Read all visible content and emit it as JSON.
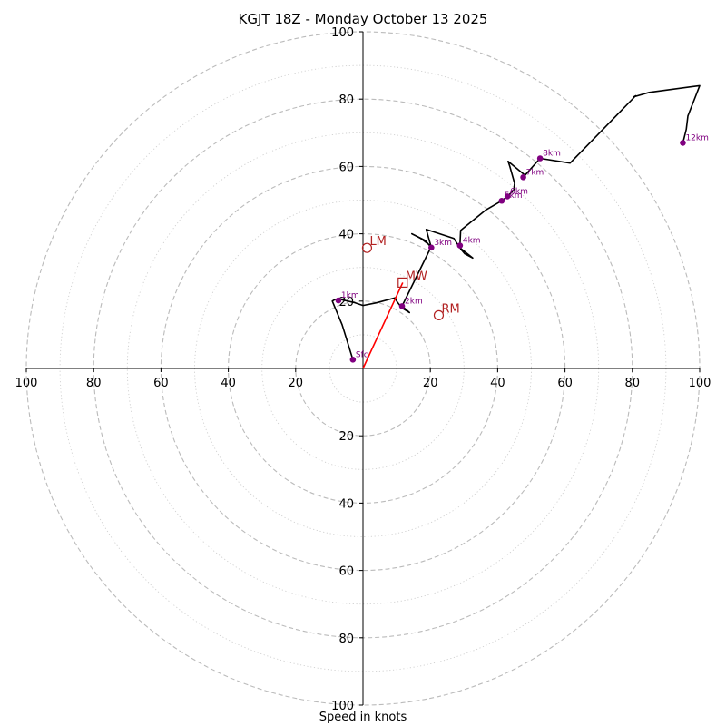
{
  "chart_data": {
    "type": "hodograph",
    "title": "KGJT 18Z - Monday October 13 2025",
    "xlabel": "Speed in knots",
    "range": [
      -100,
      100
    ],
    "ring_major": [
      20,
      40,
      60,
      80,
      100
    ],
    "ring_minor": [
      10,
      30,
      50,
      70,
      90
    ],
    "ticks": [
      {
        "v": -100,
        "label": "100"
      },
      {
        "v": -80,
        "label": "80"
      },
      {
        "v": -60,
        "label": "60"
      },
      {
        "v": -40,
        "label": "40"
      },
      {
        "v": -20,
        "label": "20"
      },
      {
        "v": 20,
        "label": "20"
      },
      {
        "v": 40,
        "label": "40"
      },
      {
        "v": 60,
        "label": "60"
      },
      {
        "v": 80,
        "label": "80"
      },
      {
        "v": 100,
        "label": "100"
      }
    ],
    "series": [
      {
        "name": "hodograph",
        "color": "#000000",
        "points": [
          [
            -3.0,
            2.6
          ],
          [
            -6.2,
            13.0
          ],
          [
            -9.1,
            20.0
          ],
          [
            -8.3,
            20.5
          ],
          [
            -6.8,
            20.5
          ],
          [
            -5.0,
            20.1
          ],
          [
            -2.7,
            19.6
          ],
          [
            0.0,
            18.7
          ],
          [
            4.0,
            19.5
          ],
          [
            9.6,
            21.0
          ],
          [
            10.0,
            20.0
          ],
          [
            11.5,
            18.0
          ],
          [
            13.8,
            16.6
          ],
          [
            12.2,
            18.0
          ],
          [
            11.6,
            18.5
          ],
          [
            20.2,
            36.0
          ],
          [
            18.5,
            38.0
          ],
          [
            14.5,
            40.0
          ],
          [
            17.0,
            38.7
          ],
          [
            20.0,
            36.5
          ],
          [
            20.3,
            35.9
          ],
          [
            18.8,
            41.3
          ],
          [
            27.0,
            38.6
          ],
          [
            28.7,
            35.9
          ],
          [
            32.6,
            32.8
          ],
          [
            30.2,
            34.1
          ],
          [
            29.0,
            35.5
          ],
          [
            29.2,
            36.8
          ],
          [
            28.8,
            36.5
          ],
          [
            29.0,
            41.0
          ],
          [
            36.4,
            47.0
          ],
          [
            41.2,
            49.8
          ],
          [
            42.9,
            51.1
          ],
          [
            44.8,
            53.0
          ],
          [
            45.0,
            55.0
          ],
          [
            43.6,
            60.0
          ],
          [
            43.1,
            61.5
          ],
          [
            48.0,
            57.5
          ],
          [
            47.6,
            56.8
          ],
          [
            52.6,
            62.4
          ],
          [
            61.5,
            61.0
          ],
          [
            81.0,
            81.0
          ],
          [
            80.5,
            80.7
          ],
          [
            85.0,
            82.0
          ],
          [
            100.0,
            84.0
          ],
          [
            96.5,
            75.0
          ],
          [
            96.0,
            71.0
          ],
          [
            95.0,
            67.0
          ]
        ]
      },
      {
        "name": "storm-motion",
        "color": "#ff0000",
        "points": [
          [
            0.0,
            0.0
          ],
          [
            11.8,
            25.5
          ]
        ]
      }
    ],
    "height_markers": [
      {
        "label": "Sfc",
        "u": -3.0,
        "v": 2.6
      },
      {
        "label": "1km",
        "u": -7.3,
        "v": 20.2
      },
      {
        "label": "2km",
        "u": 11.6,
        "v": 18.5
      },
      {
        "label": "3km",
        "u": 20.3,
        "v": 35.9
      },
      {
        "label": "4km",
        "u": 28.8,
        "v": 36.5
      },
      {
        "label": "5km",
        "u": 41.2,
        "v": 49.8
      },
      {
        "label": "6km",
        "u": 42.9,
        "v": 51.1
      },
      {
        "label": "7km",
        "u": 47.6,
        "v": 56.8
      },
      {
        "label": "8km",
        "u": 52.6,
        "v": 62.4
      },
      {
        "label": "12km",
        "u": 95.0,
        "v": 67.0
      }
    ],
    "storm_markers": [
      {
        "label": "LM",
        "shape": "circle",
        "u": 1.2,
        "v": 35.8
      },
      {
        "label": "MW",
        "shape": "square",
        "u": 11.8,
        "v": 25.5
      },
      {
        "label": "RM",
        "shape": "circle",
        "u": 22.5,
        "v": 15.8
      }
    ],
    "colors": {
      "ring": "#bbbbbb",
      "minor_ring": "#cfcfcf",
      "marker": "#800080",
      "storm": "#b22222",
      "axis": "#000000"
    }
  }
}
